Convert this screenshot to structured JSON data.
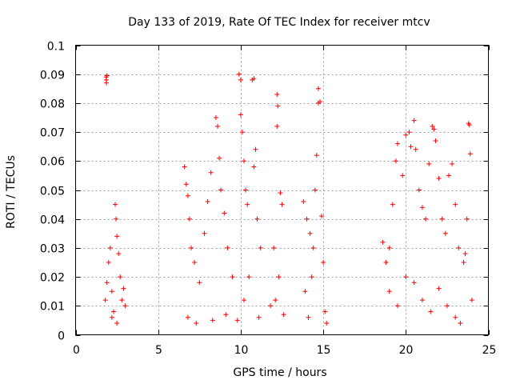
{
  "chart_data": {
    "type": "scatter",
    "title": "Day 133 of 2019, Rate Of TEC Index for receiver mtcv",
    "xlabel": "GPS time / hours",
    "ylabel": "ROTI / TECUs",
    "xlim": [
      0,
      25
    ],
    "ylim": [
      0,
      0.1
    ],
    "xticks": [
      0,
      5,
      10,
      15,
      20,
      25
    ],
    "xtick_labels": [
      "0",
      "5",
      "10",
      "15",
      "20",
      "25"
    ],
    "yticks": [
      0,
      0.01,
      0.02,
      0.03,
      0.04,
      0.05,
      0.06,
      0.07,
      0.08,
      0.09,
      0.1
    ],
    "ytick_labels": [
      "0",
      "0.01",
      "0.02",
      "0.03",
      "0.04",
      "0.05",
      "0.06",
      "0.07",
      "0.08",
      "0.09",
      "0.1"
    ],
    "grid": true,
    "marker": "+",
    "color": "#ff0000",
    "series": [
      {
        "name": "ROTI",
        "points": [
          [
            1.85,
            0.089
          ],
          [
            1.86,
            0.088
          ],
          [
            1.87,
            0.087
          ],
          [
            1.9,
            0.0895
          ],
          [
            1.8,
            0.012
          ],
          [
            1.9,
            0.018
          ],
          [
            2.0,
            0.025
          ],
          [
            2.1,
            0.03
          ],
          [
            2.2,
            0.015
          ],
          [
            2.3,
            0.008
          ],
          [
            2.4,
            0.045
          ],
          [
            2.45,
            0.04
          ],
          [
            2.5,
            0.034
          ],
          [
            2.6,
            0.028
          ],
          [
            2.7,
            0.02
          ],
          [
            2.8,
            0.012
          ],
          [
            2.9,
            0.016
          ],
          [
            3.0,
            0.01
          ],
          [
            2.2,
            0.006
          ],
          [
            2.5,
            0.004
          ],
          [
            6.6,
            0.058
          ],
          [
            6.7,
            0.052
          ],
          [
            6.8,
            0.048
          ],
          [
            6.9,
            0.04
          ],
          [
            7.0,
            0.03
          ],
          [
            7.2,
            0.025
          ],
          [
            7.5,
            0.018
          ],
          [
            7.8,
            0.035
          ],
          [
            8.0,
            0.046
          ],
          [
            8.2,
            0.056
          ],
          [
            8.5,
            0.075
          ],
          [
            8.6,
            0.072
          ],
          [
            8.7,
            0.061
          ],
          [
            8.8,
            0.05
          ],
          [
            9.0,
            0.042
          ],
          [
            9.2,
            0.03
          ],
          [
            9.5,
            0.02
          ],
          [
            6.8,
            0.006
          ],
          [
            7.3,
            0.004
          ],
          [
            8.3,
            0.005
          ],
          [
            9.1,
            0.007
          ],
          [
            9.9,
            0.09
          ],
          [
            10.0,
            0.088
          ],
          [
            10.0,
            0.076
          ],
          [
            10.1,
            0.07
          ],
          [
            10.2,
            0.06
          ],
          [
            10.3,
            0.05
          ],
          [
            10.4,
            0.045
          ],
          [
            10.7,
            0.088
          ],
          [
            10.8,
            0.0885
          ],
          [
            10.9,
            0.064
          ],
          [
            10.8,
            0.058
          ],
          [
            11.0,
            0.04
          ],
          [
            11.2,
            0.03
          ],
          [
            10.5,
            0.02
          ],
          [
            10.2,
            0.012
          ],
          [
            11.1,
            0.006
          ],
          [
            9.8,
            0.005
          ],
          [
            12.2,
            0.083
          ],
          [
            12.25,
            0.079
          ],
          [
            12.2,
            0.072
          ],
          [
            12.4,
            0.049
          ],
          [
            12.5,
            0.045
          ],
          [
            12.0,
            0.03
          ],
          [
            12.3,
            0.02
          ],
          [
            12.1,
            0.012
          ],
          [
            12.6,
            0.007
          ],
          [
            11.8,
            0.01
          ],
          [
            14.7,
            0.085
          ],
          [
            14.7,
            0.08
          ],
          [
            14.8,
            0.0805
          ],
          [
            14.6,
            0.062
          ],
          [
            14.5,
            0.05
          ],
          [
            13.8,
            0.046
          ],
          [
            14.0,
            0.04
          ],
          [
            14.2,
            0.035
          ],
          [
            14.4,
            0.03
          ],
          [
            14.9,
            0.041
          ],
          [
            15.0,
            0.025
          ],
          [
            14.3,
            0.02
          ],
          [
            13.9,
            0.015
          ],
          [
            15.1,
            0.008
          ],
          [
            15.2,
            0.004
          ],
          [
            14.1,
            0.006
          ],
          [
            18.6,
            0.032
          ],
          [
            18.8,
            0.025
          ],
          [
            19.0,
            0.03
          ],
          [
            19.2,
            0.045
          ],
          [
            19.4,
            0.06
          ],
          [
            19.5,
            0.066
          ],
          [
            19.8,
            0.055
          ],
          [
            20.0,
            0.069
          ],
          [
            20.2,
            0.07
          ],
          [
            20.3,
            0.065
          ],
          [
            20.5,
            0.074
          ],
          [
            20.6,
            0.064
          ],
          [
            20.8,
            0.05
          ],
          [
            21.0,
            0.044
          ],
          [
            21.2,
            0.04
          ],
          [
            21.4,
            0.059
          ],
          [
            21.6,
            0.072
          ],
          [
            21.7,
            0.071
          ],
          [
            21.8,
            0.067
          ],
          [
            22.0,
            0.054
          ],
          [
            22.2,
            0.04
          ],
          [
            22.4,
            0.035
          ],
          [
            22.6,
            0.055
          ],
          [
            22.8,
            0.059
          ],
          [
            23.0,
            0.045
          ],
          [
            23.2,
            0.03
          ],
          [
            23.5,
            0.025
          ],
          [
            23.8,
            0.073
          ],
          [
            23.85,
            0.0725
          ],
          [
            23.9,
            0.0625
          ],
          [
            23.7,
            0.04
          ],
          [
            23.6,
            0.028
          ],
          [
            24.0,
            0.012
          ],
          [
            19.0,
            0.015
          ],
          [
            19.5,
            0.01
          ],
          [
            20.0,
            0.02
          ],
          [
            20.5,
            0.018
          ],
          [
            21.0,
            0.012
          ],
          [
            21.5,
            0.008
          ],
          [
            22.0,
            0.016
          ],
          [
            22.5,
            0.01
          ],
          [
            23.0,
            0.006
          ],
          [
            23.3,
            0.004
          ]
        ]
      }
    ]
  }
}
